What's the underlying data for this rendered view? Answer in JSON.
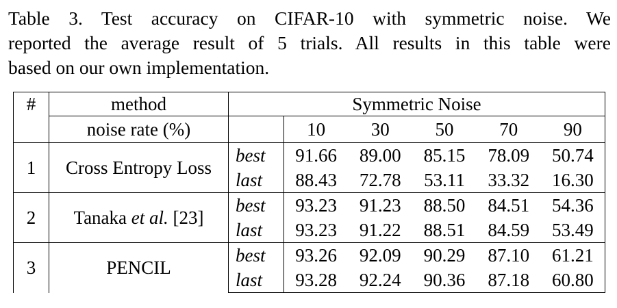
{
  "caption": {
    "line1": "Table 3. Test accuracy on CIFAR-10 with symmetric noise.  We",
    "line2": "reported the average result of 5 trials. All results in this table were",
    "line3": "based on our own implementation."
  },
  "table": {
    "header": {
      "index": "#",
      "method": "method",
      "group": "Symmetric Noise",
      "noise_rate_label": "noise rate (%)",
      "noise_rates": [
        "10",
        "30",
        "50",
        "70",
        "90"
      ]
    },
    "rows": [
      {
        "index": "1",
        "method": "Cross Entropy Loss",
        "method_ital": "",
        "method_suffix": "",
        "best_label": "best",
        "last_label": "last",
        "best": [
          "91.66",
          "89.00",
          "85.15",
          "78.09",
          "50.74"
        ],
        "last": [
          "88.43",
          "72.78",
          "53.11",
          "33.32",
          "16.30"
        ]
      },
      {
        "index": "2",
        "method": "Tanaka ",
        "method_ital": "et al.",
        "method_suffix": " [23]",
        "best_label": "best",
        "last_label": "last",
        "best": [
          "93.23",
          "91.23",
          "88.50",
          "84.51",
          "54.36"
        ],
        "last": [
          "93.23",
          "91.22",
          "88.51",
          "84.59",
          "53.49"
        ]
      },
      {
        "index": "3",
        "method": "PENCIL",
        "method_ital": "",
        "method_suffix": "",
        "best_label": "best",
        "last_label": "last",
        "best": [
          "93.26",
          "92.09",
          "90.29",
          "87.10",
          "61.21"
        ],
        "last": [
          "93.28",
          "92.24",
          "90.36",
          "87.18",
          "60.80"
        ]
      }
    ]
  }
}
